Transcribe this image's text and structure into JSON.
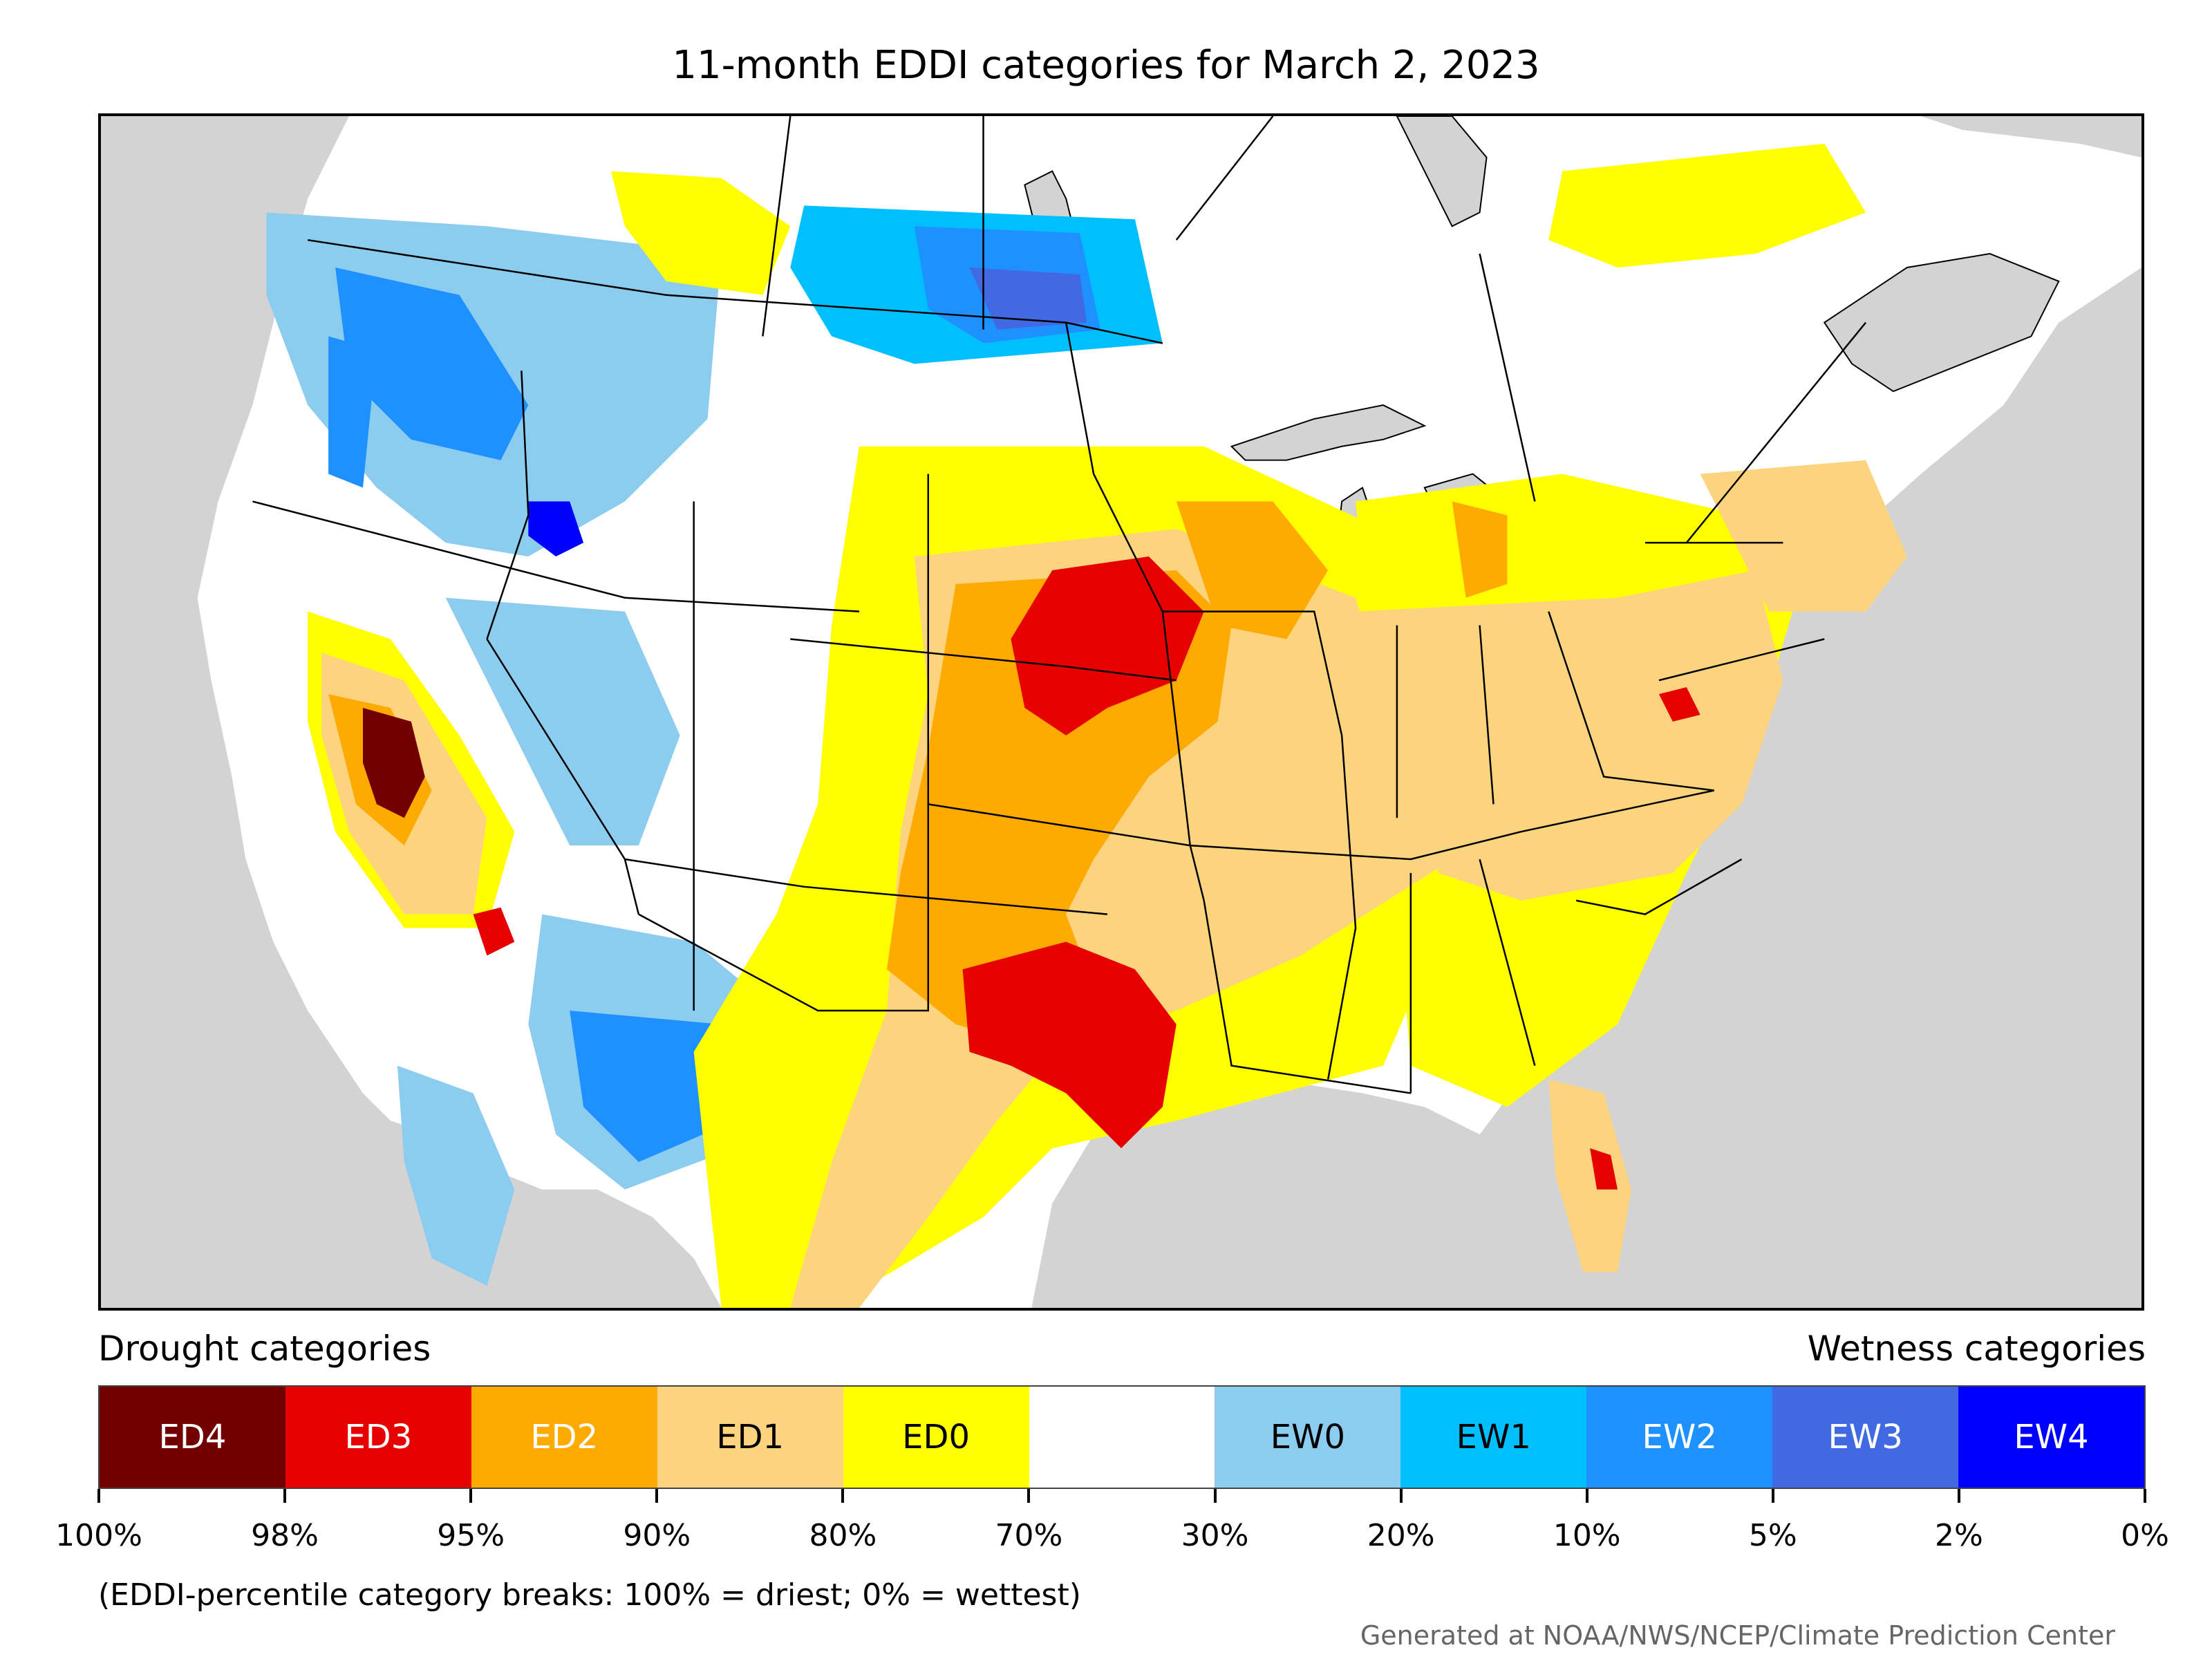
{
  "title": "11-month EDDI categories for March 2, 2023",
  "legend": {
    "drought_heading": "Drought categories",
    "wetness_heading": "Wetness categories",
    "categories": [
      {
        "label": "ED4",
        "color": "#720000",
        "text_color": "#ffffff"
      },
      {
        "label": "ED3",
        "color": "#e60000",
        "text_color": "#ffffff"
      },
      {
        "label": "ED2",
        "color": "#ffaa00",
        "text_color": "#ffffff"
      },
      {
        "label": "ED1",
        "color": "#fcd37f",
        "text_color": "#000000"
      },
      {
        "label": "ED0",
        "color": "#ffff00",
        "text_color": "#000000"
      },
      {
        "label": "",
        "color": "#ffffff",
        "text_color": "#000000"
      },
      {
        "label": "EW0",
        "color": "#8ccdef",
        "text_color": "#000000"
      },
      {
        "label": "EW1",
        "color": "#00bfff",
        "text_color": "#000000"
      },
      {
        "label": "EW2",
        "color": "#1e90ff",
        "text_color": "#ffffff"
      },
      {
        "label": "EW3",
        "color": "#4169e1",
        "text_color": "#ffffff"
      },
      {
        "label": "EW4",
        "color": "#0000ff",
        "text_color": "#ffffff"
      }
    ],
    "ticks": [
      "100%",
      "98%",
      "95%",
      "90%",
      "80%",
      "70%",
      "30%",
      "20%",
      "10%",
      "5%",
      "2%",
      "0%"
    ]
  },
  "footnote": "(EDDI-percentile category breaks: 100% = driest; 0% = wettest)",
  "credit": "Generated at NOAA/NWS/NCEP/Climate Prediction Center"
}
